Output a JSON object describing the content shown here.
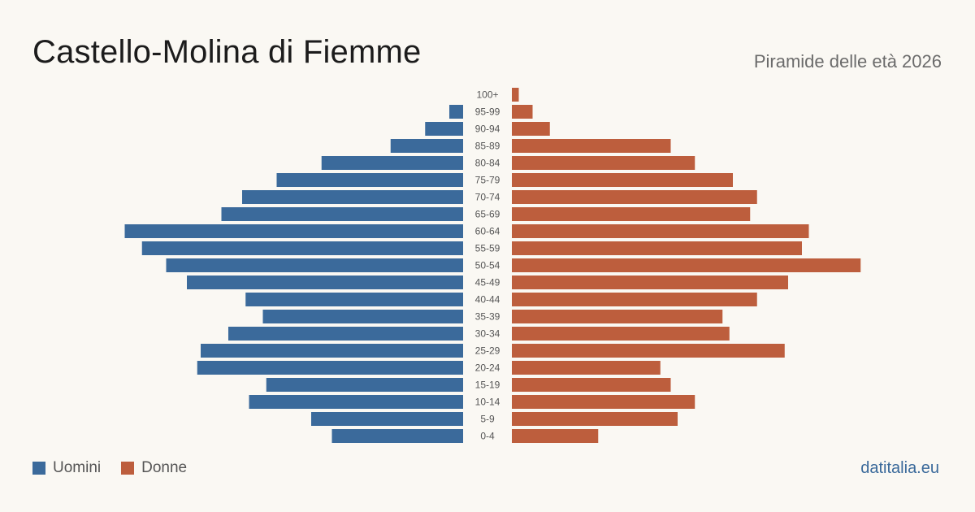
{
  "header": {
    "title": "Castello-Molina di Fiemme",
    "subtitle": "Piramide delle età 2026"
  },
  "legend": {
    "men_label": "Uomini",
    "women_label": "Donne",
    "men_color": "#3b6a9b",
    "women_color": "#bd5e3d"
  },
  "footer": {
    "brand": "datitalia.eu"
  },
  "chart_data": {
    "type": "bar",
    "categories": [
      "100+",
      "95-99",
      "90-94",
      "85-89",
      "80-84",
      "75-79",
      "70-74",
      "65-69",
      "60-64",
      "55-59",
      "50-54",
      "45-49",
      "40-44",
      "35-39",
      "30-34",
      "25-29",
      "20-24",
      "15-19",
      "10-14",
      "5-9",
      "0-4"
    ],
    "series": [
      {
        "name": "Uomini",
        "color": "#3b6a9b",
        "values": [
          0,
          4,
          11,
          21,
          41,
          54,
          64,
          70,
          98,
          93,
          86,
          80,
          63,
          58,
          68,
          76,
          77,
          57,
          62,
          44,
          38
        ]
      },
      {
        "name": "Donne",
        "color": "#bd5e3d",
        "values": [
          2,
          6,
          11,
          46,
          53,
          64,
          71,
          69,
          86,
          84,
          101,
          80,
          71,
          61,
          63,
          79,
          43,
          46,
          53,
          48,
          25
        ]
      }
    ],
    "xlabel": "",
    "ylabel": "",
    "grid": false,
    "legend_position": "bottom-left"
  }
}
